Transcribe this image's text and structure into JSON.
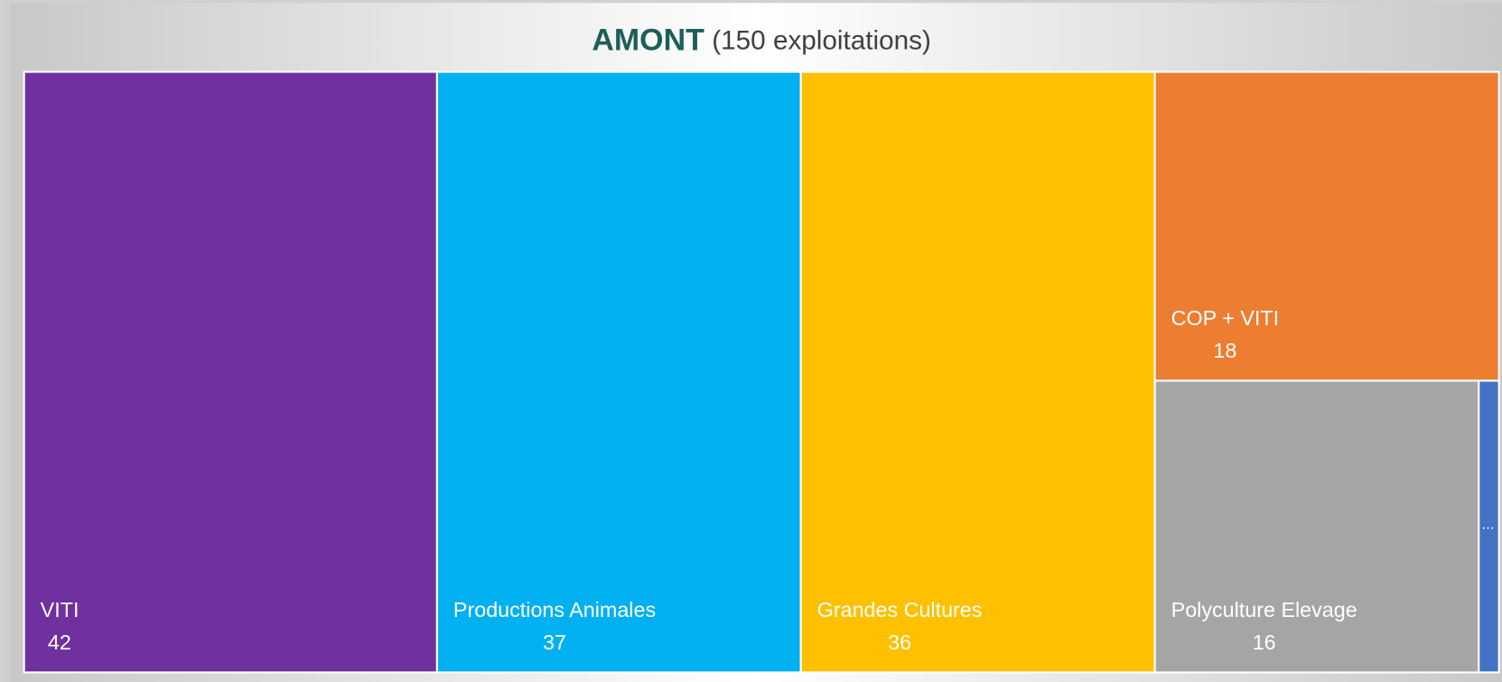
{
  "chart_data": {
    "type": "treemap",
    "title": "AMONT",
    "subtitle": "(150 exploitations)",
    "categories": [
      "VITI",
      "Productions Animales",
      "Grandes Cultures",
      "COP + VITI",
      "Polyculture Elevage",
      "..."
    ],
    "values": [
      42,
      37,
      36,
      18,
      16,
      1
    ],
    "colors": [
      "#7030a0",
      "#00b0f0",
      "#ffc000",
      "#ed7d31",
      "#a5a5a5",
      "#4472c4"
    ]
  }
}
